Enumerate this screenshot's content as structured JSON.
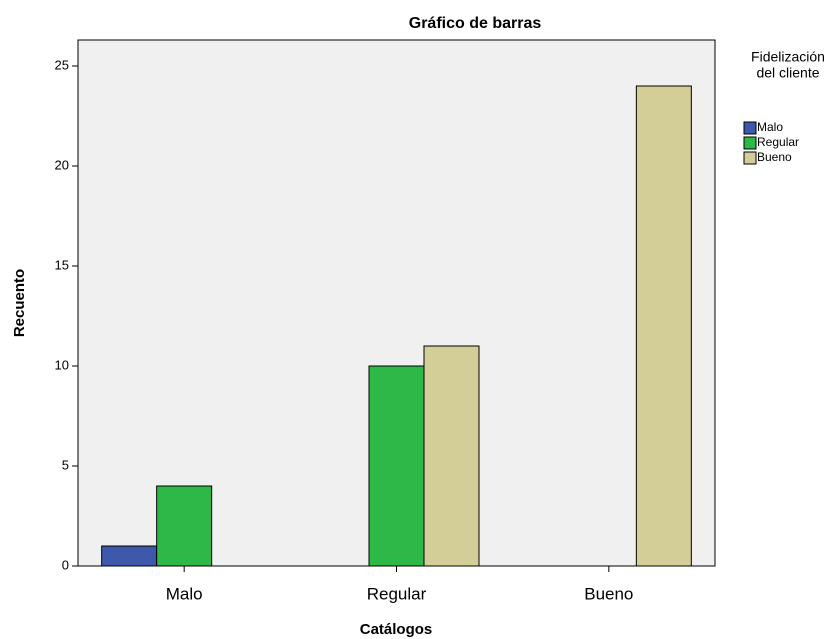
{
  "chart_data": {
    "type": "bar",
    "title": "Gráfico de barras",
    "x_label": "Catálogos",
    "y_label": "Recuento",
    "categories": [
      "Malo",
      "Regular",
      "Bueno"
    ],
    "legend_title": [
      "Fidelización",
      "del cliente"
    ],
    "legend_position": "right",
    "series": [
      {
        "name": "Malo",
        "color": "#3e58ac",
        "values": [
          1,
          null,
          null
        ]
      },
      {
        "name": "Regular",
        "color": "#2eb848",
        "values": [
          4,
          10,
          null
        ]
      },
      {
        "name": "Bueno",
        "color": "#d3ce97",
        "values": [
          null,
          11,
          24
        ]
      }
    ],
    "ylim": [
      0,
      26.3
    ],
    "yticks": [
      0,
      5,
      10,
      15,
      20,
      25
    ],
    "grid": false
  }
}
